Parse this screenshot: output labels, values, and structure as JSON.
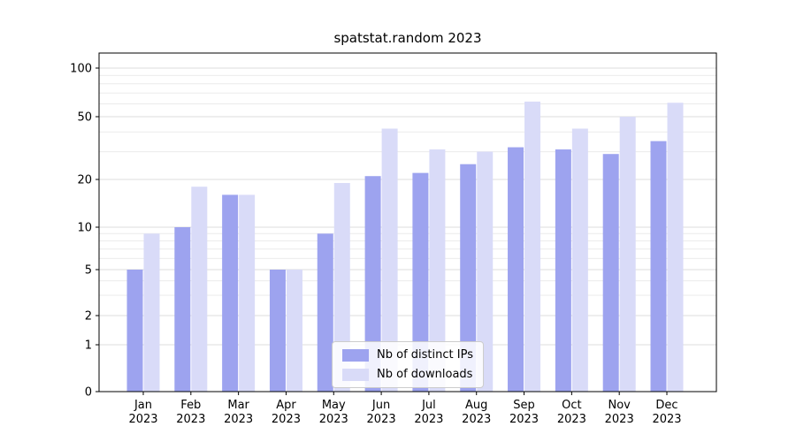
{
  "chart_data": {
    "type": "bar",
    "title": "spatstat.random 2023",
    "categories": [
      "Jan 2023",
      "Feb 2023",
      "Mar 2023",
      "Apr 2023",
      "May 2023",
      "Jun 2023",
      "Jul 2023",
      "Aug 2023",
      "Sep 2023",
      "Oct 2023",
      "Nov 2023",
      "Dec 2023"
    ],
    "series": [
      {
        "name": "Nb of distinct IPs",
        "color": "#9da3ef",
        "values": [
          5,
          10,
          16,
          5,
          9,
          21,
          22,
          25,
          32,
          31,
          29,
          35
        ]
      },
      {
        "name": "Nb of downloads",
        "color": "#d9dbf8",
        "values": [
          9,
          18,
          16,
          5,
          19,
          42,
          31,
          30,
          62,
          42,
          50,
          61
        ]
      }
    ],
    "xlabel": "",
    "ylabel": "",
    "yscale": "symlog",
    "yticks": [
      0,
      1,
      2,
      5,
      10,
      20,
      50,
      100
    ],
    "minor_gridlines": [
      3,
      4,
      6,
      7,
      8,
      9,
      30,
      40,
      60,
      70,
      80,
      90
    ],
    "ylim": [
      0,
      130
    ],
    "grid": true,
    "legend_position": "lower center",
    "background_color": "#ffffff",
    "axis_color": "#000000",
    "major_grid_color": "#dcdcdc",
    "minor_grid_color": "#ebebeb"
  }
}
